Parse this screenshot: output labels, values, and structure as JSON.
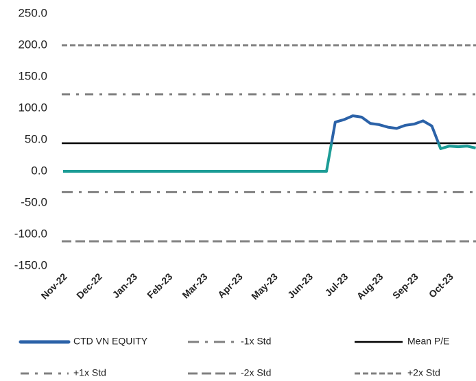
{
  "chart_data": {
    "type": "line",
    "categories": [
      "Nov-22",
      null,
      null,
      null,
      "Dec-22",
      null,
      null,
      null,
      "Jan-23",
      null,
      null,
      null,
      "Feb-23",
      null,
      null,
      null,
      "Mar-23",
      null,
      null,
      null,
      "Apr-23",
      null,
      null,
      null,
      "May-23",
      null,
      null,
      null,
      "Jun-23",
      null,
      null,
      null,
      "Jul-23",
      null,
      null,
      null,
      "Aug-23",
      null,
      null,
      null,
      "Sep-23",
      null,
      null,
      null,
      "Oct-23",
      null,
      null,
      null
    ],
    "series": [
      {
        "name": "CTD VN EQUITY",
        "color": "#2b62a8",
        "color_low": "#1c9c96",
        "values": [
          0,
          0,
          0,
          0,
          0,
          0,
          0,
          0,
          0,
          0,
          0,
          0,
          0,
          0,
          0,
          0,
          0,
          0,
          0,
          0,
          0,
          0,
          0,
          0,
          0,
          0,
          0,
          0,
          0,
          0,
          0,
          78,
          82,
          88,
          86,
          76,
          74,
          70,
          68,
          73,
          75,
          80,
          72,
          36,
          40,
          39,
          40,
          37
        ]
      }
    ],
    "reference_lines": [
      {
        "name": "-1x Std",
        "value": -33,
        "color": "#808080",
        "dash": "16 9 4 9"
      },
      {
        "name": "Mean P/E",
        "value": 44.5,
        "color": "#000000",
        "dash": "none"
      },
      {
        "name": "+1x Std",
        "value": 122,
        "color": "#808080",
        "dash": "12 9 4 9"
      },
      {
        "name": "-2x Std",
        "value": -111,
        "color": "#808080",
        "dash": "14 6"
      },
      {
        "name": "+2x Std",
        "value": 200,
        "color": "#808080",
        "dash": "8 4"
      }
    ],
    "ylim": [
      -150,
      250
    ],
    "yticks": [
      {
        "value": -150,
        "label": "-150.0"
      },
      {
        "value": -100,
        "label": "-100.0"
      },
      {
        "value": -50,
        "label": "-50.0"
      },
      {
        "value": 0,
        "label": "0.0"
      },
      {
        "value": 50,
        "label": "50.0"
      },
      {
        "value": 100,
        "label": "100.0"
      },
      {
        "value": 150,
        "label": "150.0"
      },
      {
        "value": 200,
        "label": "200.0"
      },
      {
        "value": 250,
        "label": "250.0"
      }
    ]
  }
}
